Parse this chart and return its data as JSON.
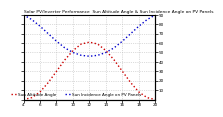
{
  "title": "Solar PV/Inverter Performance  Sun Altitude Angle & Sun Incidence Angle on PV Panels",
  "x": [
    4,
    5,
    6,
    7,
    8,
    9,
    10,
    11,
    12,
    13,
    14,
    15,
    16,
    17,
    18,
    19,
    20
  ],
  "sun_altitude": [
    0,
    2,
    8,
    18,
    30,
    42,
    52,
    59,
    61,
    59,
    52,
    42,
    30,
    18,
    8,
    2,
    0
  ],
  "sun_incidence": [
    90,
    85,
    78,
    70,
    62,
    55,
    50,
    47,
    46,
    47,
    50,
    55,
    62,
    70,
    78,
    85,
    90
  ],
  "altitude_color": "#cc0000",
  "incidence_color": "#0000cc",
  "altitude_label": "Sun Altitude Angle",
  "incidence_label": "Sun Incidence Angle on PV Panels",
  "xlim": [
    4,
    20
  ],
  "ylim_left": [
    0,
    90
  ],
  "ylim_right": [
    0,
    90
  ],
  "bg_color": "#ffffff",
  "grid_color": "#bbbbbb",
  "title_fontsize": 3.2,
  "tick_fontsize": 3.0,
  "legend_fontsize": 3.0,
  "right_yticks": [
    10,
    20,
    30,
    40,
    50,
    60,
    70,
    80,
    90
  ],
  "right_yticklabels": [
    "10",
    "20",
    "30",
    "40",
    "50",
    "60",
    "70",
    "80",
    "90"
  ]
}
